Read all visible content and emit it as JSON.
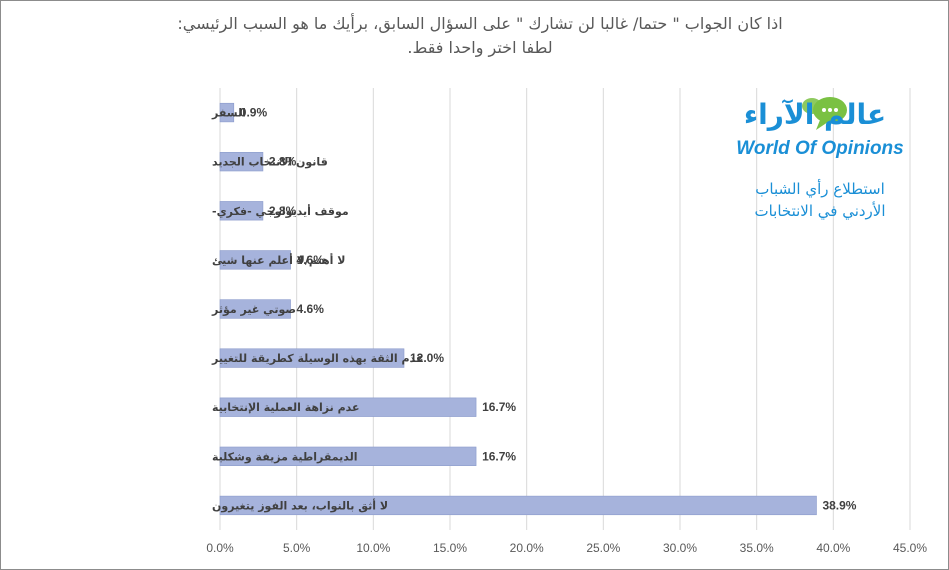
{
  "title": {
    "line1": "اذا كان الجواب \" حتما/ غالبا لن تشارك \" على السؤال السابق، برأيك ما هو السبب الرئيسي:",
    "line2": "لطفا اختر واحدا فقط."
  },
  "logo": {
    "arabic_name": "عالم الآراء",
    "english_name": "World Of Opinions",
    "subtitle_line1": "استطلاع رأي الشباب",
    "subtitle_line2": "الأردني في الانتخابات",
    "colors": {
      "blue": "#1a8fd6",
      "green": "#7ac143"
    }
  },
  "chart_data": {
    "type": "bar",
    "orientation": "horizontal",
    "categories": [
      "السفر",
      "قانون الانتخاب الجديد",
      "موقف أيديولوجي -فكري-",
      "لا أهتم/لا أعلم عنها شيئ",
      "صوتي غير مؤثر",
      "عدم الثقة بهذه الوسيلة كطريقة للتغيير",
      "عدم نزاهة العملية الإنتخابية",
      "الديمقراطية مزيفة وشكلية",
      "لا أثق بالنواب، بعد الفوز يتغيرون"
    ],
    "values": [
      0.9,
      2.8,
      2.8,
      4.6,
      4.6,
      12.0,
      16.7,
      16.7,
      38.9
    ],
    "value_labels": [
      "0.9%",
      "2.8%",
      "2.8%",
      "4.6%",
      "4.6%",
      "12.0%",
      "16.7%",
      "16.7%",
      "38.9%"
    ],
    "xlim": [
      0,
      45
    ],
    "xticks": [
      "0.0%",
      "5.0%",
      "10.0%",
      "15.0%",
      "20.0%",
      "25.0%",
      "30.0%",
      "35.0%",
      "40.0%",
      "45.0%"
    ],
    "grid": true,
    "legend": "none",
    "bar_color": "#a6b3dc",
    "bar_edge_color": "#8a9acb",
    "grid_color": "#d9d9d9"
  }
}
